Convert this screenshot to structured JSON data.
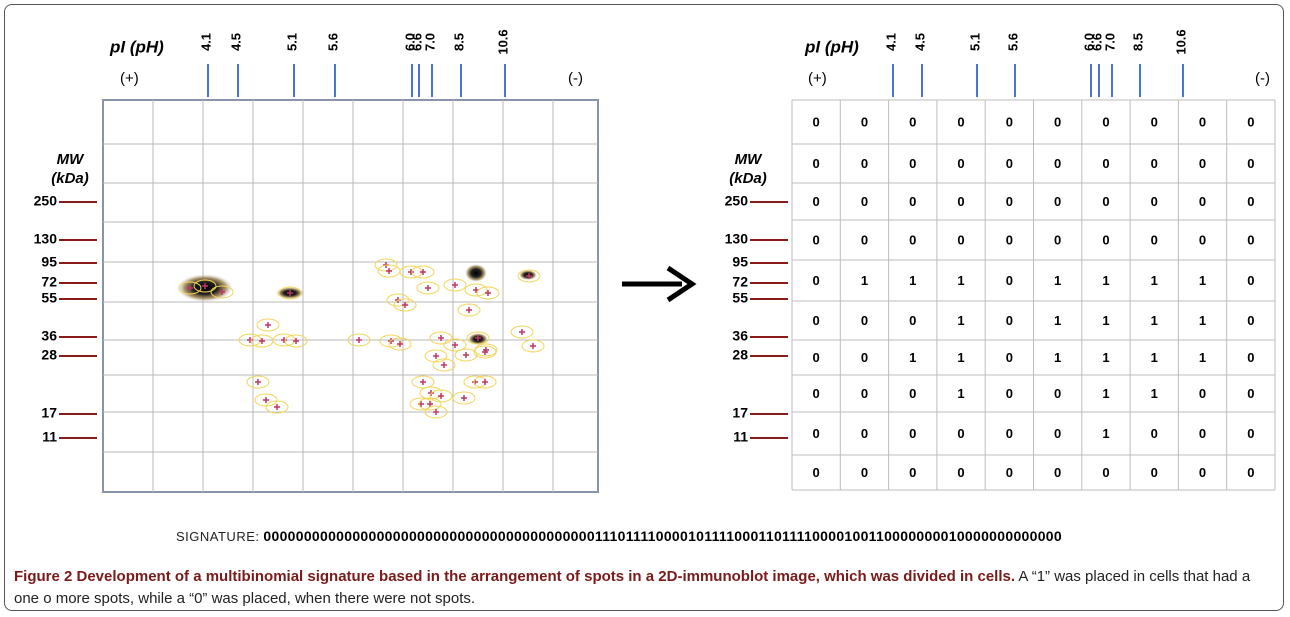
{
  "pi_label": "pI (pH)",
  "plus": "(+)",
  "minus": "(-)",
  "pi_ticks": [
    "4.1",
    "4.5",
    "5.1",
    "5.6",
    "6.0",
    "6.6",
    "7.0",
    "8.5",
    "10.6"
  ],
  "mw_label": "MW",
  "mw_unit": "(kDa)",
  "mw_ticks": [
    "250",
    "130",
    "95",
    "72",
    "55",
    "36",
    "28",
    "17",
    "11"
  ],
  "grid": [
    [
      0,
      0,
      0,
      0,
      0,
      0,
      0,
      0,
      0,
      0
    ],
    [
      0,
      0,
      0,
      0,
      0,
      0,
      0,
      0,
      0,
      0
    ],
    [
      0,
      0,
      0,
      0,
      0,
      0,
      0,
      0,
      0,
      0
    ],
    [
      0,
      0,
      0,
      0,
      0,
      0,
      0,
      0,
      0,
      0
    ],
    [
      0,
      1,
      1,
      1,
      0,
      1,
      1,
      1,
      1,
      0
    ],
    [
      0,
      0,
      0,
      1,
      0,
      1,
      1,
      1,
      1,
      0
    ],
    [
      0,
      0,
      1,
      1,
      0,
      1,
      1,
      1,
      1,
      0
    ],
    [
      0,
      0,
      0,
      1,
      0,
      0,
      1,
      1,
      0,
      0
    ],
    [
      0,
      0,
      0,
      0,
      0,
      0,
      1,
      0,
      0,
      0
    ],
    [
      0,
      0,
      0,
      0,
      0,
      0,
      0,
      0,
      0,
      0
    ]
  ],
  "signature_label": "SIGNATURE:",
  "signature": "0000000000000000000000000000000000000000011101111000010111100011011110000100110000000010000000000000",
  "caption": {
    "title": "Figure 2 Development of a multibinomial signature based in the arrangement of spots in a 2D-immunoblot image, which was divided in cells.",
    "text": "A “1” was placed in cells that had a one o more spots, while a “0” was placed, when there were not spots."
  }
}
